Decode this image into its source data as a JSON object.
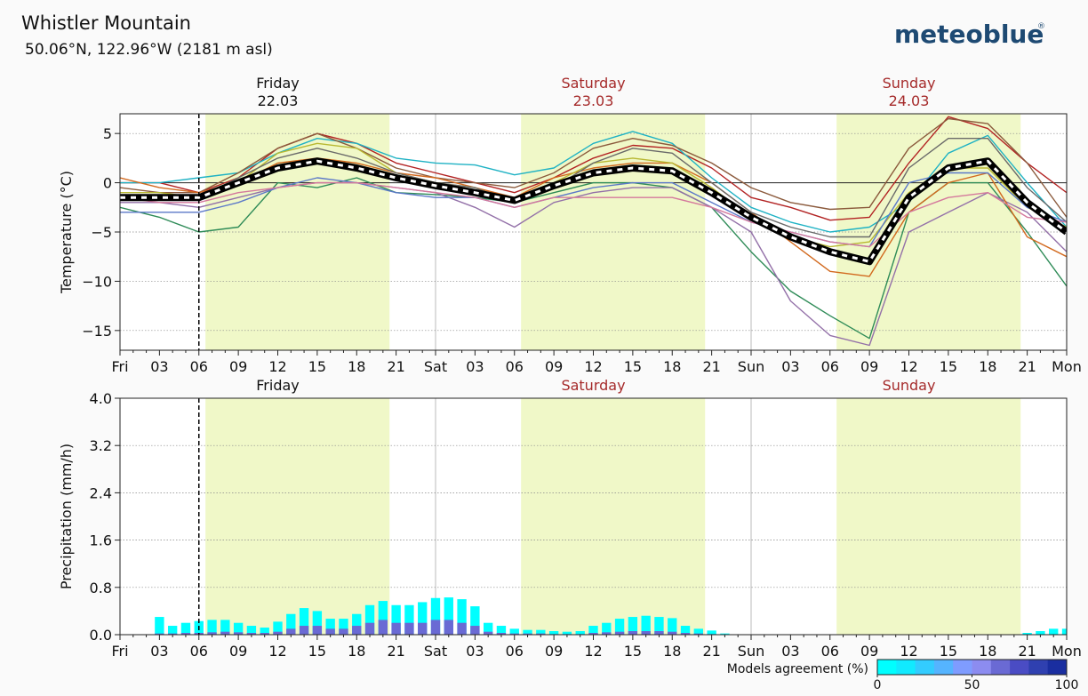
{
  "header": {
    "location_name": "Whistler Mountain",
    "coordinates": "50.06°N, 122.96°W (2181 m asl)",
    "brand": "meteoblue",
    "brand_mark": "®"
  },
  "colors": {
    "daylight": "#f0f8c8",
    "weekend_day": "#a52a2a",
    "mean_line": "#000000",
    "precip_bar": "#00ffff"
  },
  "chart_data": [
    {
      "type": "line",
      "title": "Temperature ensemble",
      "ylabel": "Temperature (°C)",
      "ylim": [
        -17,
        7
      ],
      "yticks": [
        5,
        0,
        -5,
        -10,
        -15
      ],
      "ytick_labels": [
        "5",
        "0",
        "−5",
        "−10",
        "−15"
      ],
      "x_unit": "hours since Fri 00:00",
      "xlim": [
        0,
        72
      ],
      "xtick_labels": [
        "Fri",
        "03",
        "06",
        "09",
        "12",
        "15",
        "18",
        "21",
        "Sat",
        "03",
        "06",
        "09",
        "12",
        "15",
        "18",
        "21",
        "Sun",
        "03",
        "06",
        "09",
        "12",
        "15",
        "18",
        "21",
        "Mon"
      ],
      "days": [
        {
          "name": "Friday",
          "date": "22.03",
          "weekend": false
        },
        {
          "name": "Saturday",
          "date": "23.03",
          "weekend": true
        },
        {
          "name": "Sunday",
          "date": "24.03",
          "weekend": true
        }
      ],
      "daylight_hours": [
        [
          6.5,
          20.5
        ],
        [
          30.5,
          44.5
        ],
        [
          54.5,
          68.5
        ]
      ],
      "now_hour": 6,
      "x": [
        0,
        3,
        6,
        9,
        12,
        15,
        18,
        21,
        24,
        27,
        30,
        33,
        36,
        39,
        42,
        45,
        48,
        51,
        54,
        57,
        60,
        63,
        66,
        69,
        72
      ],
      "mean": {
        "name": "Ensemble mean",
        "values": [
          -1.5,
          -1.5,
          -1.5,
          0,
          1.5,
          2.2,
          1.5,
          0.5,
          -0.3,
          -1.0,
          -1.8,
          -0.3,
          1.0,
          1.5,
          1.2,
          -1.0,
          -3.5,
          -5.5,
          -7.0,
          -8.0,
          -1.5,
          1.5,
          2.2,
          -2.0,
          -5.0
        ]
      },
      "series": [
        {
          "name": "m1",
          "color": "#b22222",
          "values": [
            0,
            0,
            -1,
            0.5,
            3.5,
            5.0,
            4.0,
            2.0,
            1.0,
            0,
            -1,
            0.5,
            2.5,
            3.8,
            3.5,
            1.5,
            -1.5,
            -2.5,
            -3.8,
            -3.5,
            2.0,
            6.7,
            5.5,
            2.0,
            -1.0
          ]
        },
        {
          "name": "m2",
          "color": "#1fb2c4",
          "values": [
            0,
            0,
            0.5,
            1,
            3,
            4.5,
            4,
            2.5,
            2,
            1.8,
            0.8,
            1.5,
            4,
            5.2,
            4,
            0.5,
            -2.5,
            -4.0,
            -5.0,
            -4.5,
            -2,
            3.0,
            4.8,
            0,
            -4.5
          ]
        },
        {
          "name": "m3",
          "color": "#8b5a3c",
          "values": [
            -0.5,
            -1,
            -1,
            1,
            3.5,
            5,
            3.5,
            1.5,
            0.5,
            0,
            -0.5,
            1,
            3.5,
            4.5,
            3.8,
            2.0,
            -0.5,
            -2.0,
            -2.7,
            -2.5,
            3.5,
            6.5,
            6.0,
            2.0,
            -3.5
          ]
        },
        {
          "name": "m4",
          "color": "#2e8b57",
          "values": [
            -2.5,
            -3.5,
            -5.0,
            -4.5,
            0,
            -0.5,
            0.5,
            -1,
            -1.2,
            -1.5,
            -2,
            -1,
            0,
            0,
            -0.5,
            -2.5,
            -7.0,
            -11.0,
            -13.5,
            -15.8,
            -3,
            0,
            0,
            -5,
            -10.5
          ]
        },
        {
          "name": "m5",
          "color": "#9370a8",
          "values": [
            -2,
            -2,
            -2.5,
            -1.5,
            -0.5,
            0,
            0,
            -0.5,
            -1,
            -2.5,
            -4.5,
            -2,
            -1,
            -0.5,
            -0.5,
            -2.5,
            -5.0,
            -12.0,
            -15.5,
            -16.5,
            -5,
            -3,
            -1,
            -3,
            -7.0
          ]
        },
        {
          "name": "m6",
          "color": "#d2691e",
          "values": [
            0.5,
            -0.5,
            -1,
            0,
            2,
            2.5,
            2,
            1,
            0.5,
            -0.5,
            -1.5,
            0.5,
            1.5,
            2,
            2,
            0,
            -3.0,
            -6.0,
            -9.0,
            -9.5,
            -3,
            0,
            1,
            -5.5,
            -7.5
          ]
        },
        {
          "name": "m7",
          "color": "#b8b832",
          "values": [
            -1,
            -1,
            -1.5,
            0,
            3,
            4,
            3.5,
            1,
            0,
            -0.5,
            -2,
            0,
            2,
            2.5,
            2,
            -0.5,
            -3.5,
            -5.5,
            -6.5,
            -6.0,
            -1,
            1.5,
            1.5,
            -2.5,
            -4.5
          ]
        },
        {
          "name": "m8",
          "color": "#696969",
          "values": [
            -1.5,
            -1.5,
            -1.5,
            0.5,
            2.5,
            3.5,
            2.5,
            1.0,
            0,
            -0.5,
            -2,
            -0.5,
            2,
            3.5,
            3,
            0,
            -3.0,
            -4.5,
            -5.5,
            -5.5,
            1.5,
            4.5,
            4.5,
            -0.5,
            -4.0
          ]
        },
        {
          "name": "m9",
          "color": "#5b78c8",
          "values": [
            -3,
            -3,
            -3,
            -2,
            -0.5,
            0.5,
            0,
            -1,
            -1.5,
            -1.5,
            -2.5,
            -1.5,
            -0.5,
            0,
            0,
            -2,
            -4.0,
            -5.0,
            -6.0,
            -6.5,
            0,
            1.0,
            1.0,
            -2.5,
            -4.0
          ]
        },
        {
          "name": "m10",
          "color": "#d4789c",
          "values": [
            -1.5,
            -2,
            -2,
            -1,
            -0.5,
            0,
            0,
            -0.5,
            -1,
            -1.5,
            -2.5,
            -1.5,
            -1.5,
            -1.5,
            -1.5,
            -2.5,
            -4.0,
            -5.0,
            -6.0,
            -6.5,
            -3,
            -1.5,
            -1.0,
            -3.5,
            -4.0
          ]
        }
      ]
    },
    {
      "type": "bar",
      "title": "Precipitation",
      "ylabel": "Precipitation (mm/h)",
      "ylim": [
        0,
        4
      ],
      "yticks": [
        4.0,
        3.2,
        2.4,
        1.6,
        0.8,
        0.0
      ],
      "ytick_labels": [
        "4.0",
        "3.2",
        "2.4",
        "1.6",
        "0.8",
        "0.0"
      ],
      "x_unit": "hours since Fri 00:00",
      "xlim": [
        0,
        72
      ],
      "xtick_labels": [
        "Fri",
        "03",
        "06",
        "09",
        "12",
        "15",
        "18",
        "21",
        "Sat",
        "03",
        "06",
        "09",
        "12",
        "15",
        "18",
        "21",
        "Sun",
        "03",
        "06",
        "09",
        "12",
        "15",
        "18",
        "21",
        "Mon"
      ],
      "days": [
        {
          "name": "Friday",
          "weekend": false
        },
        {
          "name": "Saturday",
          "weekend": true
        },
        {
          "name": "Sunday",
          "weekend": true
        }
      ],
      "daylight_hours": [
        [
          6.5,
          20.5
        ],
        [
          30.5,
          44.5
        ],
        [
          54.5,
          68.5
        ]
      ],
      "now_hour": 6,
      "bar_hours": [
        3,
        4,
        5,
        6,
        7,
        8,
        9,
        10,
        11,
        12,
        13,
        14,
        15,
        16,
        17,
        18,
        19,
        20,
        21,
        22,
        23,
        24,
        25,
        26,
        27,
        28,
        29,
        30,
        31,
        32,
        33,
        34,
        35,
        36,
        37,
        38,
        39,
        40,
        41,
        42,
        43,
        44,
        45,
        46,
        69,
        70,
        71,
        72
      ],
      "values": [
        0.3,
        0.15,
        0.2,
        0.23,
        0.25,
        0.25,
        0.2,
        0.15,
        0.12,
        0.22,
        0.35,
        0.45,
        0.4,
        0.27,
        0.27,
        0.35,
        0.5,
        0.57,
        0.5,
        0.5,
        0.55,
        0.62,
        0.63,
        0.6,
        0.48,
        0.2,
        0.15,
        0.1,
        0.08,
        0.08,
        0.06,
        0.05,
        0.06,
        0.15,
        0.2,
        0.27,
        0.3,
        0.32,
        0.3,
        0.28,
        0.15,
        0.1,
        0.07,
        0.02,
        0.03,
        0.06,
        0.1,
        0.1
      ],
      "agreement_values": [
        0.02,
        0.02,
        0.03,
        0.03,
        0.04,
        0.05,
        0.04,
        0.03,
        0.03,
        0.05,
        0.1,
        0.15,
        0.15,
        0.1,
        0.1,
        0.15,
        0.2,
        0.25,
        0.2,
        0.2,
        0.2,
        0.25,
        0.25,
        0.2,
        0.15,
        0.05,
        0.03,
        0.02,
        0.02,
        0.02,
        0.01,
        0.01,
        0.01,
        0.03,
        0.04,
        0.05,
        0.06,
        0.06,
        0.06,
        0.05,
        0.03,
        0.02,
        0.01,
        0,
        0,
        0,
        0,
        0
      ],
      "legend": {
        "title": "Models agreement (%)",
        "tick_labels": [
          "0",
          "50",
          "100"
        ],
        "colors": [
          "#00ffff",
          "#11eaff",
          "#33ccff",
          "#55b4ff",
          "#7f9cff",
          "#8c8cf0",
          "#6a6ad4",
          "#4a4cc4",
          "#2f40b0",
          "#1a2ea0"
        ]
      }
    }
  ]
}
